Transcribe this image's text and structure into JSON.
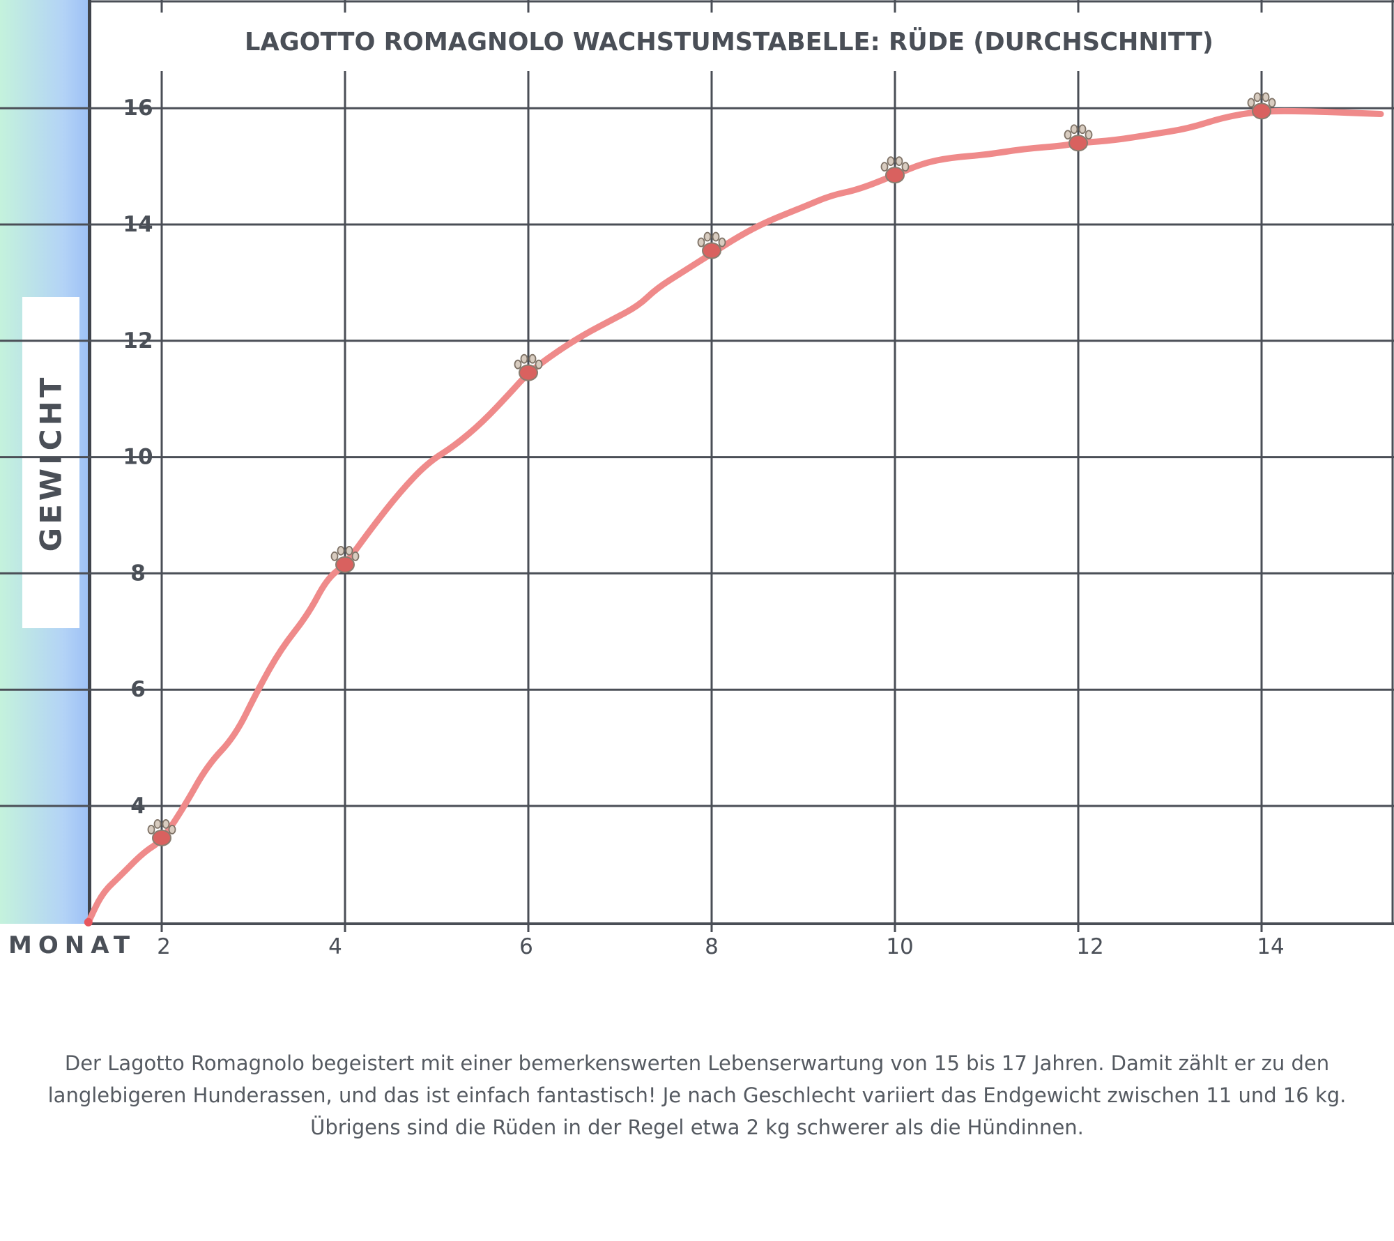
{
  "chart_data": {
    "type": "line",
    "title": "LAGOTTO ROMAGNOLO WACHSTUMSTABELLE: RÜDE (DURCHSCHNITT)",
    "xlabel": "MONAT",
    "ylabel": "GEWICHT",
    "x_ticks": [
      2,
      4,
      6,
      8,
      10,
      12,
      14
    ],
    "y_ticks": [
      4,
      6,
      8,
      10,
      12,
      14,
      16
    ],
    "xlim": [
      1.2,
      15.3
    ],
    "ylim": [
      1.9,
      17.3
    ],
    "grid": true,
    "line_color": "#ef8a8a",
    "grid_color": "#4a4e56",
    "series": [
      {
        "x": [
          1.2,
          1.35,
          1.55,
          1.8,
          2.0,
          2.25,
          2.5,
          2.8,
          3.05,
          3.3,
          3.6,
          3.8,
          4.0,
          4.3,
          4.6,
          4.9,
          5.2,
          5.5,
          5.8,
          6.0,
          6.3,
          6.6,
          6.9,
          7.2,
          7.4,
          7.7,
          8.0,
          8.3,
          8.6,
          9.0,
          9.3,
          9.6,
          10.0,
          10.3,
          10.6,
          11.0,
          11.4,
          11.8,
          12.0,
          12.4,
          12.8,
          13.2,
          13.6,
          14.0,
          14.5,
          15.3
        ],
        "y": [
          2.0,
          2.5,
          2.8,
          3.2,
          3.4,
          4.0,
          4.7,
          5.2,
          6.0,
          6.7,
          7.3,
          7.9,
          8.15,
          8.8,
          9.4,
          9.9,
          10.2,
          10.6,
          11.1,
          11.45,
          11.8,
          12.1,
          12.35,
          12.6,
          12.9,
          13.2,
          13.5,
          13.8,
          14.05,
          14.3,
          14.5,
          14.6,
          14.85,
          15.05,
          15.15,
          15.2,
          15.3,
          15.35,
          15.4,
          15.45,
          15.55,
          15.65,
          15.85,
          15.95,
          15.95,
          15.9
        ]
      }
    ],
    "markers": {
      "icon": "paw-icon",
      "x": [
        2,
        4,
        6,
        8,
        10,
        12,
        14
      ],
      "y": [
        3.45,
        8.15,
        11.45,
        13.55,
        14.85,
        15.4,
        15.95
      ]
    }
  },
  "caption": {
    "line1": "Der Lagotto Romagnolo begeistert mit einer bemerkenswerten Lebenserwartung von 15 bis 17 Jahren. Damit zählt er zu den",
    "line2": "langlebigeren Hunderassen, und das ist einfach fantastisch! Je nach Geschlecht variiert das Endgewicht zwischen 11 und 16 kg.",
    "line3": "Übrigens sind die Rüden in der Regel etwa 2 kg schwerer als die Hündinnen."
  }
}
